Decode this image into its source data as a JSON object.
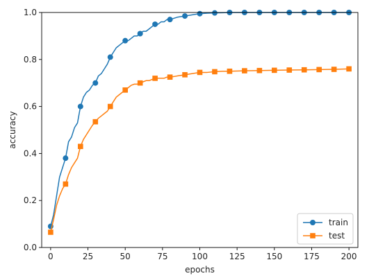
{
  "chart_data": {
    "type": "line",
    "xlabel": "epochs",
    "ylabel": "accuracy",
    "xlim": [
      -6,
      206
    ],
    "ylim": [
      0.0,
      1.0
    ],
    "x_ticks": [
      0,
      25,
      50,
      75,
      100,
      125,
      150,
      175,
      200
    ],
    "y_ticks": [
      0.0,
      0.2,
      0.4,
      0.6,
      0.8,
      1.0
    ],
    "x_tick_labels": [
      "0",
      "25",
      "50",
      "75",
      "100",
      "125",
      "150",
      "175",
      "200"
    ],
    "y_tick_labels": [
      "0.0",
      "0.2",
      "0.4",
      "0.6",
      "0.8",
      "1.0"
    ],
    "grid": false,
    "legend_position": "bottom-right",
    "series": [
      {
        "name": "train",
        "color": "#1f77b4",
        "marker": "circle",
        "x": [
          0,
          2,
          4,
          6,
          8,
          10,
          12,
          14,
          16,
          18,
          20,
          22,
          24,
          26,
          28,
          30,
          32,
          34,
          36,
          38,
          40,
          42,
          44,
          46,
          48,
          50,
          52,
          54,
          56,
          58,
          60,
          62,
          64,
          66,
          68,
          70,
          72,
          74,
          76,
          78,
          80,
          85,
          90,
          95,
          100,
          105,
          110,
          115,
          120,
          130,
          140,
          150,
          160,
          170,
          180,
          190,
          200
        ],
        "y": [
          0.09,
          0.14,
          0.22,
          0.3,
          0.34,
          0.38,
          0.45,
          0.47,
          0.51,
          0.53,
          0.6,
          0.64,
          0.66,
          0.67,
          0.69,
          0.7,
          0.73,
          0.74,
          0.76,
          0.78,
          0.81,
          0.83,
          0.85,
          0.86,
          0.87,
          0.88,
          0.88,
          0.89,
          0.9,
          0.9,
          0.91,
          0.92,
          0.92,
          0.93,
          0.94,
          0.95,
          0.95,
          0.96,
          0.96,
          0.97,
          0.97,
          0.98,
          0.985,
          0.99,
          0.995,
          0.997,
          0.998,
          0.999,
          1.0,
          1.0,
          1.0,
          1.0,
          1.0,
          1.0,
          1.0,
          1.0,
          1.0
        ],
        "marker_x": [
          0,
          10,
          20,
          30,
          40,
          50,
          60,
          70,
          80,
          90,
          100,
          110,
          120,
          130,
          140,
          150,
          160,
          170,
          180,
          190,
          200
        ],
        "marker_y": [
          0.09,
          0.38,
          0.6,
          0.7,
          0.81,
          0.88,
          0.91,
          0.95,
          0.97,
          0.985,
          0.995,
          0.998,
          1.0,
          1.0,
          1.0,
          1.0,
          1.0,
          1.0,
          1.0,
          1.0,
          1.0
        ]
      },
      {
        "name": "test",
        "color": "#ff7f0e",
        "marker": "square",
        "x": [
          0,
          2,
          4,
          6,
          8,
          10,
          12,
          14,
          16,
          18,
          20,
          22,
          24,
          26,
          28,
          30,
          32,
          34,
          36,
          38,
          40,
          42,
          44,
          46,
          48,
          50,
          52,
          54,
          56,
          58,
          60,
          62,
          64,
          66,
          68,
          70,
          72,
          74,
          76,
          78,
          80,
          85,
          90,
          95,
          100,
          105,
          110,
          115,
          120,
          130,
          140,
          150,
          160,
          170,
          180,
          190,
          200
        ],
        "y": [
          0.065,
          0.12,
          0.18,
          0.22,
          0.25,
          0.27,
          0.31,
          0.34,
          0.36,
          0.38,
          0.43,
          0.46,
          0.48,
          0.5,
          0.52,
          0.535,
          0.55,
          0.56,
          0.57,
          0.58,
          0.6,
          0.62,
          0.64,
          0.65,
          0.66,
          0.67,
          0.68,
          0.69,
          0.695,
          0.695,
          0.7,
          0.705,
          0.71,
          0.71,
          0.715,
          0.72,
          0.72,
          0.72,
          0.72,
          0.725,
          0.725,
          0.73,
          0.735,
          0.74,
          0.745,
          0.745,
          0.748,
          0.75,
          0.75,
          0.752,
          0.753,
          0.754,
          0.755,
          0.756,
          0.757,
          0.758,
          0.76
        ],
        "marker_x": [
          0,
          10,
          20,
          30,
          40,
          50,
          60,
          70,
          80,
          90,
          100,
          110,
          120,
          130,
          140,
          150,
          160,
          170,
          180,
          190,
          200
        ],
        "marker_y": [
          0.065,
          0.27,
          0.43,
          0.535,
          0.6,
          0.67,
          0.7,
          0.72,
          0.725,
          0.735,
          0.745,
          0.748,
          0.75,
          0.752,
          0.753,
          0.754,
          0.755,
          0.756,
          0.757,
          0.758,
          0.76
        ]
      }
    ]
  }
}
